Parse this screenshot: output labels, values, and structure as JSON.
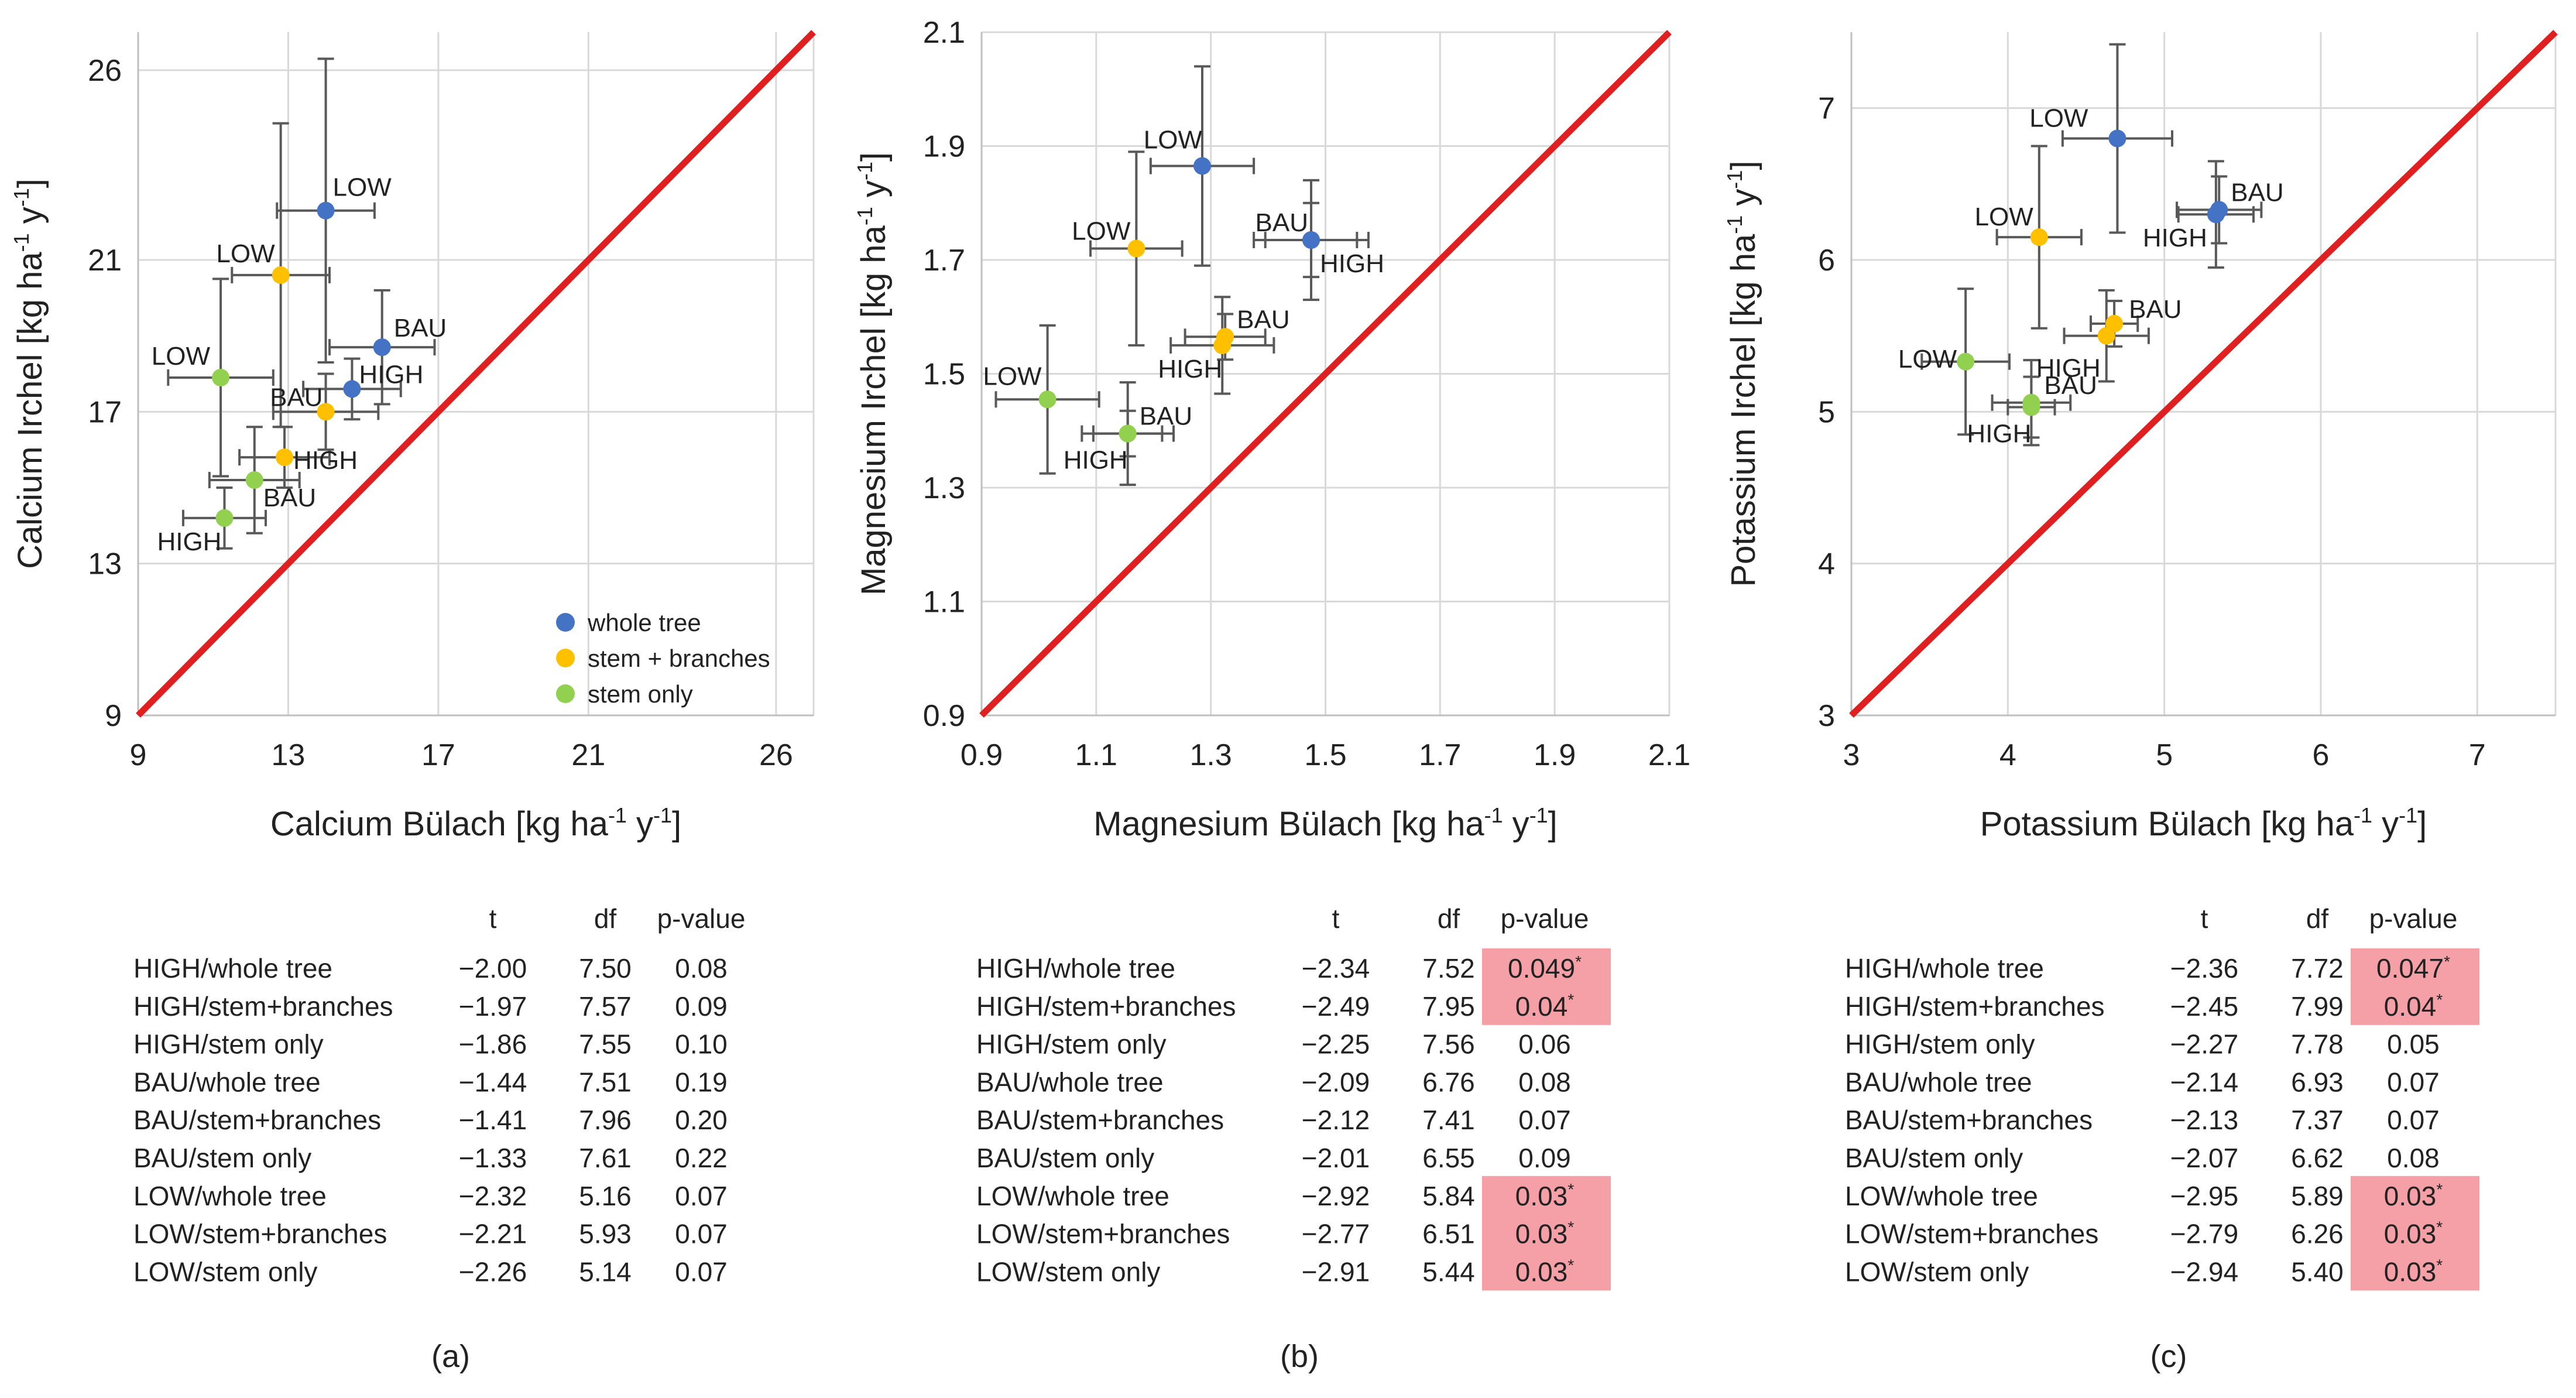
{
  "chart_data": [
    {
      "type": "scatter",
      "panel_label": "(a)",
      "xlabel": {
        "base": "Calcium Bülach [kg ha",
        "e1": "-1",
        "mid": " y",
        "e2": "-1",
        "end": "]"
      },
      "ylabel": {
        "base": "Calcium Irchel [kg ha",
        "e1": "-1",
        "mid": " y",
        "e2": "-1",
        "end": "]"
      },
      "xlim": [
        9,
        27
      ],
      "ylim": [
        9,
        27
      ],
      "xticks": [
        9,
        13,
        17,
        21,
        26
      ],
      "yticks": [
        9,
        13,
        17,
        21,
        26
      ],
      "grid": true,
      "reference_line": "1:1",
      "legend": {
        "placement": "bottom-right",
        "entries": [
          "whole tree",
          "stem + branches",
          "stem only"
        ]
      },
      "series": [
        {
          "name": "whole tree",
          "color": "#4472C4",
          "points": [
            {
              "label": "LOW",
              "x": 14.0,
              "y": 22.3,
              "xerr": 1.3,
              "yerr": 4.0
            },
            {
              "label": "BAU",
              "x": 15.5,
              "y": 18.7,
              "xerr": 1.4,
              "yerr": 1.5
            },
            {
              "label": "HIGH",
              "x": 14.7,
              "y": 17.6,
              "xerr": 1.3,
              "yerr": 0.8
            }
          ]
        },
        {
          "name": "stem + branches",
          "color": "#FFC000",
          "points": [
            {
              "label": "LOW",
              "x": 12.8,
              "y": 20.6,
              "xerr": 1.3,
              "yerr": 4.0
            },
            {
              "label": "BAU",
              "x": 14.0,
              "y": 17.0,
              "xerr": 1.4,
              "yerr": 1.0
            },
            {
              "label": "HIGH",
              "x": 12.9,
              "y": 15.8,
              "xerr": 1.2,
              "yerr": 0.8
            }
          ]
        },
        {
          "name": "stem only",
          "color": "#92D050",
          "points": [
            {
              "label": "LOW",
              "x": 11.2,
              "y": 17.9,
              "xerr": 1.4,
              "yerr": 2.6
            },
            {
              "label": "BAU",
              "x": 12.1,
              "y": 15.2,
              "xerr": 1.2,
              "yerr": 1.4
            },
            {
              "label": "HIGH",
              "x": 11.3,
              "y": 14.2,
              "xerr": 1.1,
              "yerr": 0.8
            }
          ]
        }
      ],
      "table": {
        "columns": [
          "t",
          "df",
          "p-value"
        ],
        "rows": [
          {
            "label": "HIGH/whole tree",
            "t": "−2.00",
            "df": "7.50",
            "p": "0.08",
            "sig": false
          },
          {
            "label": "HIGH/stem+branches",
            "t": "−1.97",
            "df": "7.57",
            "p": "0.09",
            "sig": false
          },
          {
            "label": "HIGH/stem only",
            "t": "−1.86",
            "df": "7.55",
            "p": "0.10",
            "sig": false
          },
          {
            "label": "BAU/whole tree",
            "t": "−1.44",
            "df": "7.51",
            "p": "0.19",
            "sig": false
          },
          {
            "label": "BAU/stem+branches",
            "t": "−1.41",
            "df": "7.96",
            "p": "0.20",
            "sig": false
          },
          {
            "label": "BAU/stem only",
            "t": "−1.33",
            "df": "7.61",
            "p": "0.22",
            "sig": false
          },
          {
            "label": "LOW/whole tree",
            "t": "−2.32",
            "df": "5.16",
            "p": "0.07",
            "sig": false
          },
          {
            "label": "LOW/stem+branches",
            "t": "−2.21",
            "df": "5.93",
            "p": "0.07",
            "sig": false
          },
          {
            "label": "LOW/stem only",
            "t": "−2.26",
            "df": "5.14",
            "p": "0.07",
            "sig": false
          }
        ]
      }
    },
    {
      "type": "scatter",
      "panel_label": "(b)",
      "xlabel": {
        "base": "Magnesium Bülach [kg ha",
        "e1": "-1",
        "mid": " y",
        "e2": "-1",
        "end": "]"
      },
      "ylabel": {
        "base": "Magnesium Irchel [kg ha",
        "e1": "-1",
        "mid": " y",
        "e2": "-1",
        "end": "]"
      },
      "xlim": [
        0.9,
        2.1
      ],
      "ylim": [
        0.9,
        2.1
      ],
      "xticks": [
        0.9,
        1.1,
        1.3,
        1.5,
        1.7,
        1.9,
        2.1
      ],
      "yticks": [
        0.9,
        1.1,
        1.3,
        1.5,
        1.7,
        1.9,
        2.1
      ],
      "grid": true,
      "reference_line": "1:1",
      "series": [
        {
          "name": "whole tree",
          "color": "#4472C4",
          "points": [
            {
              "label": "LOW",
              "x": 1.285,
              "y": 1.865,
              "xerr": 0.09,
              "yerr": 0.175
            },
            {
              "label": "BAU",
              "x": 1.475,
              "y": 1.735,
              "xerr": 0.08,
              "yerr": 0.105
            },
            {
              "label": "HIGH",
              "x": 1.475,
              "y": 1.735,
              "xerr": 0.1,
              "yerr": 0.065
            }
          ]
        },
        {
          "name": "stem + branches",
          "color": "#FFC000",
          "points": [
            {
              "label": "LOW",
              "x": 1.17,
              "y": 1.72,
              "xerr": 0.08,
              "yerr": 0.17
            },
            {
              "label": "BAU",
              "x": 1.325,
              "y": 1.565,
              "xerr": 0.07,
              "yerr": 0.04
            },
            {
              "label": "HIGH",
              "x": 1.32,
              "y": 1.55,
              "xerr": 0.09,
              "yerr": 0.085
            }
          ]
        },
        {
          "name": "stem only",
          "color": "#92D050",
          "points": [
            {
              "label": "LOW",
              "x": 1.015,
              "y": 1.455,
              "xerr": 0.09,
              "yerr": 0.13
            },
            {
              "label": "BAU",
              "x": 1.155,
              "y": 1.395,
              "xerr": 0.08,
              "yerr": 0.09
            },
            {
              "label": "HIGH",
              "x": 1.155,
              "y": 1.395,
              "xerr": 0.06,
              "yerr": 0.04
            }
          ]
        }
      ],
      "table": {
        "columns": [
          "t",
          "df",
          "p-value"
        ],
        "rows": [
          {
            "label": "HIGH/whole tree",
            "t": "−2.34",
            "df": "7.52",
            "p": "0.049",
            "sig": true
          },
          {
            "label": "HIGH/stem+branches",
            "t": "−2.49",
            "df": "7.95",
            "p": "0.04",
            "sig": true
          },
          {
            "label": "HIGH/stem only",
            "t": "−2.25",
            "df": "7.56",
            "p": "0.06",
            "sig": false
          },
          {
            "label": "BAU/whole tree",
            "t": "−2.09",
            "df": "6.76",
            "p": "0.08",
            "sig": false
          },
          {
            "label": "BAU/stem+branches",
            "t": "−2.12",
            "df": "7.41",
            "p": "0.07",
            "sig": false
          },
          {
            "label": "BAU/stem only",
            "t": "−2.01",
            "df": "6.55",
            "p": "0.09",
            "sig": false
          },
          {
            "label": "LOW/whole tree",
            "t": "−2.92",
            "df": "5.84",
            "p": "0.03",
            "sig": true
          },
          {
            "label": "LOW/stem+branches",
            "t": "−2.77",
            "df": "6.51",
            "p": "0.03",
            "sig": true
          },
          {
            "label": "LOW/stem only",
            "t": "−2.91",
            "df": "5.44",
            "p": "0.03",
            "sig": true
          }
        ]
      }
    },
    {
      "type": "scatter",
      "panel_label": "(c)",
      "xlabel": {
        "base": "Potassium Bülach [kg ha",
        "e1": "-1",
        "mid": " y",
        "e2": "-1",
        "end": "]"
      },
      "ylabel": {
        "base": "Potassium Irchel [kg ha",
        "e1": "-1",
        "mid": " y",
        "e2": "-1",
        "end": "]"
      },
      "xlim": [
        3,
        7.5
      ],
      "ylim": [
        3,
        7.5
      ],
      "xticks": [
        3,
        4,
        5,
        6,
        7
      ],
      "yticks": [
        3,
        4,
        5,
        6,
        7
      ],
      "grid": true,
      "reference_line": "1:1",
      "series": [
        {
          "name": "whole tree",
          "color": "#4472C4",
          "points": [
            {
              "label": "LOW",
              "x": 4.7,
              "y": 6.8,
              "xerr": 0.35,
              "yerr": 0.62
            },
            {
              "label": "BAU",
              "x": 5.35,
              "y": 6.33,
              "xerr": 0.27,
              "yerr": 0.22
            },
            {
              "label": "HIGH",
              "x": 5.33,
              "y": 6.3,
              "xerr": 0.24,
              "yerr": 0.35
            }
          ]
        },
        {
          "name": "stem + branches",
          "color": "#FFC000",
          "points": [
            {
              "label": "LOW",
              "x": 4.2,
              "y": 6.15,
              "xerr": 0.27,
              "yerr": 0.6
            },
            {
              "label": "BAU",
              "x": 4.68,
              "y": 5.58,
              "xerr": 0.15,
              "yerr": 0.15
            },
            {
              "label": "HIGH",
              "x": 4.63,
              "y": 5.5,
              "xerr": 0.27,
              "yerr": 0.3
            }
          ]
        },
        {
          "name": "stem only",
          "color": "#92D050",
          "points": [
            {
              "label": "LOW",
              "x": 3.73,
              "y": 5.33,
              "xerr": 0.28,
              "yerr": 0.48
            },
            {
              "label": "BAU",
              "x": 4.15,
              "y": 5.06,
              "xerr": 0.25,
              "yerr": 0.28
            },
            {
              "label": "HIGH",
              "x": 4.15,
              "y": 5.03,
              "xerr": 0.15,
              "yerr": 0.2
            }
          ]
        }
      ],
      "table": {
        "columns": [
          "t",
          "df",
          "p-value"
        ],
        "rows": [
          {
            "label": "HIGH/whole tree",
            "t": "−2.36",
            "df": "7.72",
            "p": "0.047",
            "sig": true
          },
          {
            "label": "HIGH/stem+branches",
            "t": "−2.45",
            "df": "7.99",
            "p": "0.04",
            "sig": true
          },
          {
            "label": "HIGH/stem only",
            "t": "−2.27",
            "df": "7.78",
            "p": "0.05",
            "sig": false
          },
          {
            "label": "BAU/whole tree",
            "t": "−2.14",
            "df": "6.93",
            "p": "0.07",
            "sig": false
          },
          {
            "label": "BAU/stem+branches",
            "t": "−2.13",
            "df": "7.37",
            "p": "0.07",
            "sig": false
          },
          {
            "label": "BAU/stem only",
            "t": "−2.07",
            "df": "6.62",
            "p": "0.08",
            "sig": false
          },
          {
            "label": "LOW/whole tree",
            "t": "−2.95",
            "df": "5.89",
            "p": "0.03",
            "sig": true
          },
          {
            "label": "LOW/stem+branches",
            "t": "−2.79",
            "df": "6.26",
            "p": "0.03",
            "sig": true
          },
          {
            "label": "LOW/stem only",
            "t": "−2.94",
            "df": "5.40",
            "p": "0.03",
            "sig": true
          }
        ]
      }
    }
  ],
  "styles": {
    "reference_line_color": "#E02020",
    "grid_color": "#D9D9D9",
    "errorbar_color": "#595959",
    "highlight_color": "#F4A0A6",
    "significance_marker": "*"
  }
}
